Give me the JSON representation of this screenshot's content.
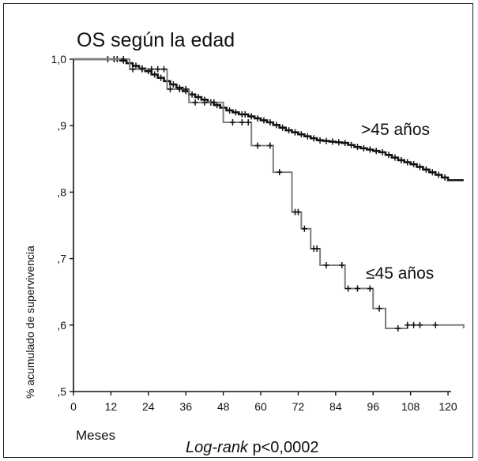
{
  "chart_data": {
    "type": "line",
    "subtype": "kaplan-meier step curve",
    "title": "OS según la edad",
    "xlabel": "Meses",
    "ylabel": "% acumulado de supervivencia",
    "footer_italic": "Log-rank",
    "footer_rest": " p<0,0002",
    "xlim": [
      0,
      121
    ],
    "ylim": [
      0.5,
      1.0
    ],
    "x_ticks": [
      0,
      12,
      24,
      36,
      48,
      60,
      72,
      84,
      96,
      108,
      120
    ],
    "y_ticks": [
      {
        "value": 0.5,
        "label": ",5"
      },
      {
        "value": 0.6,
        "label": ",6"
      },
      {
        "value": 0.7,
        "label": ",7"
      },
      {
        "value": 0.8,
        "label": ",8"
      },
      {
        "value": 0.9,
        "label": ",9"
      },
      {
        "value": 1.0,
        "label": "1,0"
      }
    ],
    "grid": false,
    "series": [
      {
        "name": ">45 años",
        "color": "#141414",
        "x": [
          0,
          12,
          15,
          17,
          19,
          21,
          23,
          25,
          27,
          29,
          31,
          33,
          35,
          37,
          39,
          41,
          43,
          45,
          47,
          49,
          51,
          53,
          56,
          58,
          60,
          62,
          64,
          66,
          68,
          70,
          72,
          74,
          76,
          78,
          80,
          82,
          84,
          86,
          88,
          90,
          92,
          94,
          96,
          98,
          100,
          102,
          104,
          106,
          108,
          110,
          112,
          114,
          116,
          118,
          120,
          125
        ],
        "y": [
          1.0,
          1.0,
          0.998,
          0.994,
          0.99,
          0.986,
          0.982,
          0.977,
          0.972,
          0.967,
          0.962,
          0.957,
          0.952,
          0.947,
          0.943,
          0.939,
          0.935,
          0.931,
          0.927,
          0.923,
          0.92,
          0.917,
          0.914,
          0.911,
          0.908,
          0.905,
          0.901,
          0.897,
          0.893,
          0.89,
          0.887,
          0.884,
          0.881,
          0.878,
          0.877,
          0.876,
          0.875,
          0.874,
          0.871,
          0.868,
          0.866,
          0.864,
          0.862,
          0.86,
          0.856,
          0.852,
          0.848,
          0.845,
          0.842,
          0.838,
          0.834,
          0.83,
          0.826,
          0.822,
          0.818,
          0.818
        ],
        "censor_x": [
          11,
          13,
          14,
          16,
          18,
          20,
          22,
          24,
          26,
          28,
          30,
          32,
          34,
          36,
          38,
          40,
          42,
          44,
          46,
          48,
          50,
          52,
          54,
          55,
          57,
          59,
          61,
          63,
          65,
          67,
          69,
          71,
          73,
          75,
          77,
          79,
          81,
          83,
          85,
          87,
          89,
          91,
          93,
          95,
          97,
          99,
          101,
          103,
          105,
          107,
          109,
          111,
          113,
          115,
          117,
          119
        ]
      },
      {
        "name": "≤45 años",
        "color": "#7d7d7d",
        "x": [
          0,
          18,
          30,
          37,
          48,
          57,
          64,
          70,
          73,
          76,
          79,
          87,
          96,
          100,
          107,
          125
        ],
        "y": [
          1.0,
          0.985,
          0.955,
          0.935,
          0.905,
          0.87,
          0.83,
          0.77,
          0.745,
          0.715,
          0.69,
          0.655,
          0.625,
          0.595,
          0.6,
          0.595
        ],
        "censor_x": [
          16,
          19,
          22,
          25,
          27,
          29,
          31,
          34,
          36,
          39,
          42,
          45,
          51,
          54,
          56,
          59,
          63,
          66,
          71,
          72,
          74,
          77,
          78,
          81,
          86,
          88,
          91,
          95,
          98,
          104,
          107,
          109,
          111,
          116
        ]
      }
    ]
  }
}
